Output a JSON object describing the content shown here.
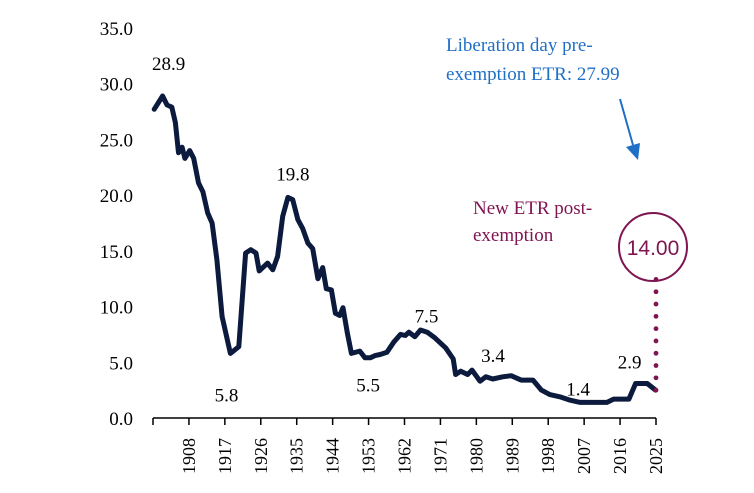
{
  "chart_data": {
    "type": "line",
    "title": "",
    "xlabel": "",
    "ylabel": "",
    "ylim": [
      0,
      35
    ],
    "xlim": [
      1899,
      2025
    ],
    "grid": false,
    "y_ticks": [
      "0.0",
      "5.0",
      "10.0",
      "15.0",
      "20.0",
      "25.0",
      "30.0",
      "35.0"
    ],
    "x_ticks": [
      "1908",
      "1917",
      "1926",
      "1935",
      "1944",
      "1953",
      "1962",
      "1971",
      "1980",
      "1989",
      "1998",
      "2007",
      "2016",
      "2025"
    ],
    "line_color": "#0B1A3D",
    "series": [
      {
        "x": [
          1899.3,
          1901.4,
          1902.5,
          1903.7,
          1904.6,
          1905.4,
          1906.3,
          1907,
          1908.2,
          1909.2,
          1910.4,
          1911.5,
          1912.7,
          1913.8,
          1915,
          1916.3,
          1918.4,
          1920.5,
          1922.2,
          1923.5,
          1924.8,
          1925.6,
          1927.7,
          1929,
          1930.2,
          1931.5,
          1932.8,
          1934,
          1935.3,
          1936.5,
          1937.8,
          1939,
          1940.3,
          1941.5,
          1942.4,
          1943.7,
          1944.7,
          1945.8,
          1946.6,
          1947.7,
          1948.7,
          1950.8,
          1952.1,
          1953.4,
          1954.6,
          1955.9,
          1957.6,
          1959.3,
          1961,
          1962.2,
          1963.1,
          1964.6,
          1966,
          1967.7,
          1969.6,
          1972.3,
          1974.2,
          1974.8,
          1976.1,
          1977.8,
          1978.9,
          1980.9,
          1982.4,
          1984.1,
          1986.6,
          1988.7,
          1991.2,
          1994.2,
          1996.3,
          1998.4,
          2000.9,
          2003.5,
          2006,
          2012.7,
          2014.4,
          2018.2,
          2019.9,
          2022.8,
          2024.9
        ],
        "y": [
          27.7,
          28.9,
          28.1,
          27.9,
          26.5,
          23.8,
          24.3,
          23.3,
          24.0,
          23.3,
          21.1,
          20.3,
          18.4,
          17.5,
          14.2,
          9.1,
          5.8,
          6.4,
          14.8,
          15.1,
          14.8,
          13.2,
          13.9,
          13.3,
          14.5,
          18.1,
          19.8,
          19.6,
          17.8,
          17.0,
          15.7,
          15.2,
          12.5,
          13.5,
          11.6,
          11.5,
          9.4,
          9.2,
          9.9,
          7.6,
          5.8,
          6.0,
          5.4,
          5.4,
          5.6,
          5.7,
          5.9,
          6.8,
          7.5,
          7.4,
          7.7,
          7.3,
          7.9,
          7.7,
          7.2,
          6.3,
          5.3,
          3.9,
          4.2,
          3.9,
          4.3,
          3.3,
          3.7,
          3.5,
          3.7,
          3.8,
          3.4,
          3.4,
          2.5,
          2.1,
          1.9,
          1.6,
          1.4,
          1.4,
          1.7,
          1.7,
          3.1,
          3.1,
          2.5
        ]
      }
    ],
    "data_labels": [
      {
        "text": "28.9",
        "year": 1901.4,
        "value": 28.9
      },
      {
        "text": "5.8",
        "year": 1918.4,
        "value": 5.8
      },
      {
        "text": "19.8",
        "year": 1932.8,
        "value": 19.8
      },
      {
        "text": "5.5",
        "year": 1953.4,
        "value": 5.5
      },
      {
        "text": "7.5",
        "year": 1966,
        "value": 7.5
      },
      {
        "text": "3.4",
        "year": 1980.9,
        "value": 3.4
      },
      {
        "text": "1.4",
        "year": 2006,
        "value": 1.4
      },
      {
        "text": "2.9",
        "year": 2019.9,
        "value": 2.9
      }
    ],
    "annotations": {
      "pre_exemption": {
        "line1": "Liberation day pre-",
        "line2": "exemption ETR:   27.99",
        "value": 27.99,
        "color": "#1F6FC6"
      },
      "post_exemption": {
        "line1": "New ETR post-",
        "line2": "exemption",
        "value_text": "14.00",
        "value": 14.0,
        "year": 2025,
        "color": "#7E1450"
      }
    }
  }
}
